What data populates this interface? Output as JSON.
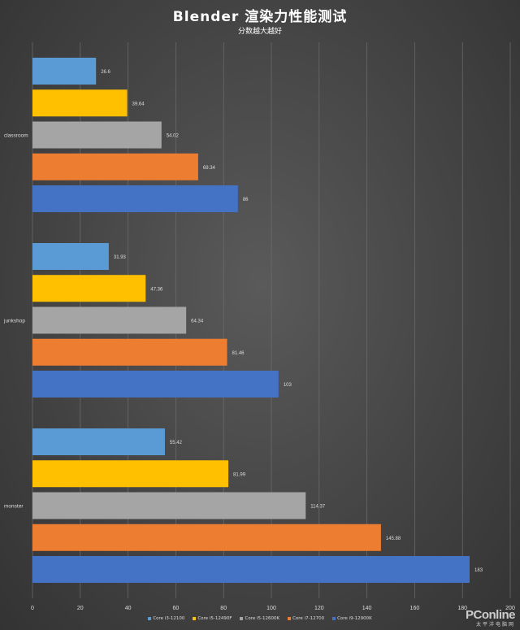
{
  "chart_data": {
    "type": "bar",
    "orientation": "horizontal",
    "title": "Blender 渲染力性能测试",
    "subtitle": "分数越大越好",
    "categories": [
      "classroom",
      "junkshop",
      "monster"
    ],
    "series": [
      {
        "name": "Core i3-12100",
        "color": "#5b9bd5",
        "values": [
          26.6,
          31.93,
          55.42
        ]
      },
      {
        "name": "Core i5-12490F",
        "color": "#ffc000",
        "values": [
          39.64,
          47.36,
          81.99
        ]
      },
      {
        "name": "Core i5-12600K",
        "color": "#a5a5a5",
        "values": [
          54.02,
          64.34,
          114.37
        ]
      },
      {
        "name": "Core i7-12700",
        "color": "#ed7d31",
        "values": [
          69.34,
          81.46,
          145.88
        ]
      },
      {
        "name": "Core i9-12900K",
        "color": "#4472c4",
        "values": [
          86,
          103,
          183
        ]
      }
    ],
    "xlim": [
      0,
      200
    ],
    "xticks": [
      0,
      20,
      40,
      60,
      80,
      100,
      120,
      140,
      160,
      180,
      200
    ],
    "grid": true,
    "legend_position": "bottom"
  },
  "watermark": {
    "main": "PConline",
    "sub": "太平洋电脑网"
  }
}
